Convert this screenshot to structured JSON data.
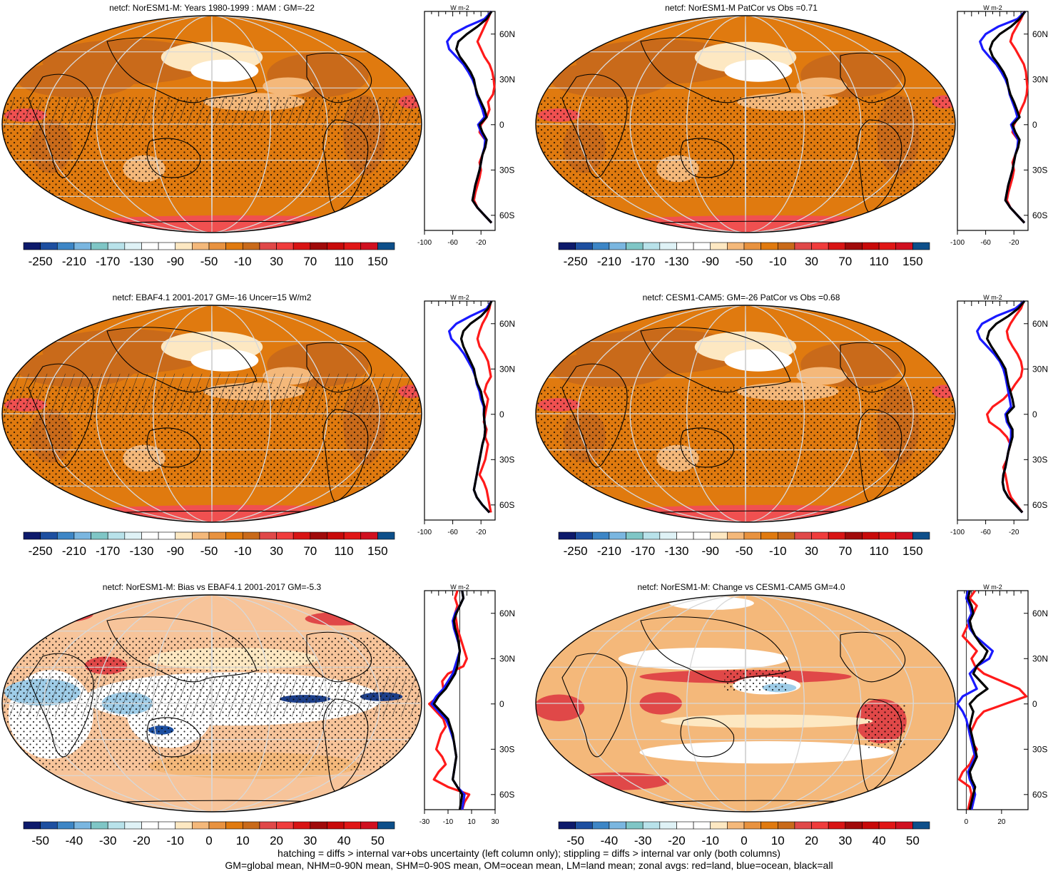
{
  "palette": {
    "full": [
      "#0d1a6b",
      "#1d4fa0",
      "#3d86c6",
      "#7ab6e0",
      "#7fc6c6",
      "#b8e2ea",
      "#dff2f6",
      "#ffffff",
      "#ffffff",
      "#fde8c2",
      "#f4b87a",
      "#e8923f",
      "#e07a0f",
      "#c96a1a",
      "#e04848",
      "#f03c3c",
      "#d81414",
      "#a00a0a",
      "#c80a0a",
      "#e01616",
      "#d01020",
      "#0d4f8a"
    ],
    "ocean": "#e07a0f",
    "dark": "#c96a1a",
    "light": "#f4b87a",
    "pale": "#fde8c2",
    "red": "#f05050",
    "blueline": "#1a1aff",
    "redline": "#ff1a1a",
    "blackline": "#000000"
  },
  "footer": {
    "line1": "hatching = diffs > internal var+obs uncertainty (left column only); stippling = diffs > internal var only (both columns)",
    "line2": "GM=global mean, NHM=0-90N mean, SHM=0-90S mean, OM=ocean mean, LM=land mean; zonal avgs: red=land, blue=ocean, black=all"
  },
  "chart_data": [
    {
      "type": "heatmap",
      "title": "netcf: NorESM1-M: Years 1980-1999 : MAM : GM=-22",
      "map_style": "mean",
      "colorbar_labels": [
        "-250",
        "-210",
        "-170",
        "-130",
        "-90",
        "-50",
        "-10",
        "30",
        "70",
        "110",
        "150"
      ],
      "zonal": {
        "unit": "W m-2",
        "xlim": [
          -100,
          0
        ],
        "xticks": [
          "-100",
          "-60",
          "-20"
        ],
        "lat_ticks": [
          "60N",
          "30N",
          "0",
          "30S",
          "60S"
        ],
        "lat": [
          75,
          70,
          65,
          60,
          55,
          50,
          45,
          40,
          35,
          30,
          25,
          20,
          15,
          10,
          5,
          0,
          -5,
          -10,
          -15,
          -20,
          -25,
          -30,
          -35,
          -40,
          -45,
          -50,
          -55,
          -60,
          -65
        ],
        "series": [
          {
            "name": "all",
            "color": "#000000",
            "values": [
              -5,
              -12,
              -25,
              -40,
              -52,
              -55,
              -50,
              -42,
              -35,
              -30,
              -28,
              -25,
              -20,
              -15,
              -12,
              -22,
              -18,
              -12,
              -14,
              -18,
              -20,
              -22,
              -25,
              -28,
              -30,
              -32,
              -25,
              -15,
              -5
            ]
          },
          {
            "name": "ocean",
            "color": "#1a1aff",
            "values": [
              -5,
              -15,
              -40,
              -60,
              -68,
              -65,
              -55,
              -45,
              -38,
              -32,
              -28,
              -26,
              -22,
              -18,
              -15,
              -24,
              -20,
              -14,
              -15,
              -18,
              -20,
              -22,
              -25,
              -28,
              -30,
              -32,
              -25,
              -15,
              -5
            ]
          },
          {
            "name": "land",
            "color": "#ff1a1a",
            "values": [
              -6,
              -10,
              -15,
              -20,
              -25,
              -20,
              -15,
              -8,
              -4,
              -2,
              -1,
              -3,
              -10,
              -8,
              -12,
              -20,
              -22,
              -14,
              -14,
              -18,
              -22,
              -20,
              -22,
              -25,
              -28,
              -30,
              -25,
              -15,
              -5
            ]
          }
        ]
      }
    },
    {
      "type": "heatmap",
      "title": "netcf: NorESM1-M PatCor vs Obs =0.71",
      "map_style": "mean",
      "colorbar_labels": [
        "-250",
        "-210",
        "-170",
        "-130",
        "-90",
        "-50",
        "-10",
        "30",
        "70",
        "110",
        "150"
      ],
      "zonal": {
        "unit": "W m-2",
        "xlim": [
          -100,
          0
        ],
        "xticks": [
          "-100",
          "-60",
          "-20"
        ],
        "lat_ticks": [
          "60N",
          "30N",
          "0",
          "30S",
          "60S"
        ],
        "lat": [
          75,
          70,
          65,
          60,
          55,
          50,
          45,
          40,
          35,
          30,
          25,
          20,
          15,
          10,
          5,
          0,
          -5,
          -10,
          -15,
          -20,
          -25,
          -30,
          -35,
          -40,
          -45,
          -50,
          -55,
          -60,
          -65
        ],
        "series": [
          {
            "name": "all",
            "color": "#000000",
            "values": [
              -4,
              -12,
              -24,
              -40,
              -50,
              -54,
              -50,
              -42,
              -35,
              -30,
              -28,
              -25,
              -20,
              -16,
              -12,
              -22,
              -18,
              -12,
              -14,
              -18,
              -20,
              -22,
              -25,
              -28,
              -30,
              -32,
              -25,
              -15,
              -5
            ]
          },
          {
            "name": "ocean",
            "color": "#1a1aff",
            "values": [
              -4,
              -15,
              -42,
              -60,
              -68,
              -64,
              -55,
              -45,
              -38,
              -32,
              -28,
              -26,
              -22,
              -18,
              -15,
              -24,
              -20,
              -14,
              -15,
              -18,
              -20,
              -22,
              -25,
              -28,
              -30,
              -32,
              -25,
              -15,
              -5
            ]
          },
          {
            "name": "land",
            "color": "#ff1a1a",
            "values": [
              -5,
              -10,
              -16,
              -22,
              -25,
              -18,
              -12,
              -6,
              -3,
              -2,
              -1,
              -2,
              -5,
              -10,
              -14,
              -20,
              -22,
              -14,
              -14,
              -18,
              -22,
              -20,
              -22,
              -25,
              -28,
              -30,
              -25,
              -15,
              -5
            ]
          }
        ]
      }
    },
    {
      "type": "heatmap",
      "title": "netcf: EBAF4.1 2001-2017 GM=-16 Uncer=15 W/m2",
      "map_style": "mean",
      "colorbar_labels": [
        "-250",
        "-210",
        "-170",
        "-130",
        "-90",
        "-50",
        "-10",
        "30",
        "70",
        "110",
        "150"
      ],
      "zonal": {
        "unit": "W m-2",
        "xlim": [
          -100,
          0
        ],
        "xticks": [
          "-100",
          "-60",
          "-20"
        ],
        "lat_ticks": [
          "60N",
          "30N",
          "0",
          "30S",
          "60S"
        ],
        "lat": [
          75,
          70,
          65,
          60,
          55,
          50,
          45,
          40,
          35,
          30,
          25,
          20,
          15,
          10,
          5,
          0,
          -5,
          -10,
          -15,
          -20,
          -25,
          -30,
          -35,
          -40,
          -45,
          -50,
          -55,
          -60,
          -65
        ],
        "series": [
          {
            "name": "all",
            "color": "#000000",
            "values": [
              -5,
              -10,
              -20,
              -35,
              -45,
              -48,
              -45,
              -40,
              -35,
              -30,
              -28,
              -25,
              -20,
              -18,
              -15,
              -16,
              -15,
              -14,
              -15,
              -18,
              -20,
              -22,
              -24,
              -26,
              -28,
              -30,
              -26,
              -18,
              -8
            ]
          },
          {
            "name": "ocean",
            "color": "#1a1aff",
            "values": [
              -5,
              -12,
              -35,
              -55,
              -65,
              -62,
              -52,
              -44,
              -38,
              -32,
              -28,
              -26,
              -22,
              -20,
              -16,
              -16,
              -15,
              -14,
              -15,
              -18,
              -20,
              -22,
              -24,
              -26,
              -28,
              -30,
              -26,
              -18,
              -8
            ]
          },
          {
            "name": "land",
            "color": "#ff1a1a",
            "values": [
              -6,
              -8,
              -12,
              -18,
              -22,
              -25,
              -22,
              -15,
              -10,
              -8,
              -6,
              -12,
              -15,
              -10,
              -12,
              -14,
              -16,
              -12,
              -14,
              -10,
              -12,
              -14,
              -18,
              -22,
              -16,
              -12,
              -10,
              -8,
              -6
            ]
          }
        ]
      }
    },
    {
      "type": "heatmap",
      "title": "netcf: CESM1-CAM5: GM=-26 PatCor vs Obs =0.68",
      "map_style": "mean",
      "colorbar_labels": [
        "-250",
        "-210",
        "-170",
        "-130",
        "-90",
        "-50",
        "-10",
        "30",
        "70",
        "110",
        "150"
      ],
      "zonal": {
        "unit": "W m-2",
        "xlim": [
          -100,
          0
        ],
        "xticks": [
          "-100",
          "-60",
          "-20"
        ],
        "lat_ticks": [
          "60N",
          "30N",
          "0",
          "30S",
          "60S"
        ],
        "lat": [
          75,
          70,
          65,
          60,
          55,
          50,
          45,
          40,
          35,
          30,
          25,
          20,
          15,
          10,
          5,
          0,
          -5,
          -10,
          -15,
          -20,
          -25,
          -30,
          -35,
          -40,
          -45,
          -50,
          -55,
          -60,
          -65
        ],
        "series": [
          {
            "name": "all",
            "color": "#000000",
            "values": [
              -5,
              -14,
              -28,
              -45,
              -55,
              -58,
              -52,
              -45,
              -38,
              -32,
              -30,
              -28,
              -25,
              -22,
              -20,
              -30,
              -28,
              -22,
              -22,
              -25,
              -28,
              -30,
              -32,
              -35,
              -36,
              -34,
              -28,
              -18,
              -8
            ]
          },
          {
            "name": "ocean",
            "color": "#1a1aff",
            "values": [
              -5,
              -18,
              -45,
              -65,
              -72,
              -68,
              -58,
              -48,
              -40,
              -35,
              -32,
              -30,
              -28,
              -26,
              -24,
              -32,
              -30,
              -24,
              -24,
              -26,
              -28,
              -30,
              -32,
              -35,
              -36,
              -34,
              -28,
              -18,
              -8
            ]
          },
          {
            "name": "land",
            "color": "#ff1a1a",
            "values": [
              -6,
              -10,
              -18,
              -25,
              -30,
              -28,
              -22,
              -15,
              -10,
              -8,
              -10,
              -18,
              -25,
              -35,
              -50,
              -58,
              -55,
              -40,
              -30,
              -25,
              -28,
              -30,
              -35,
              -32,
              -30,
              -28,
              -24,
              -16,
              -8
            ]
          }
        ]
      }
    },
    {
      "type": "heatmap",
      "title": "netcf: NorESM1-M: Bias vs EBAF4.1 2001-2017 GM=-5.3",
      "map_style": "bias",
      "colorbar_labels": [
        "-50",
        "-40",
        "-30",
        "-20",
        "-10",
        "0",
        "10",
        "20",
        "30",
        "40",
        "50"
      ],
      "zonal": {
        "unit": "W m-2",
        "xlim": [
          -30,
          30
        ],
        "xticks": [
          "-30",
          "-10",
          "10",
          "30"
        ],
        "lat_ticks": [
          "60N",
          "30N",
          "0",
          "30S",
          "60S"
        ],
        "lat": [
          75,
          70,
          65,
          60,
          55,
          50,
          45,
          40,
          35,
          30,
          25,
          20,
          15,
          10,
          5,
          0,
          -5,
          -10,
          -15,
          -20,
          -25,
          -30,
          -35,
          -40,
          -45,
          -50,
          -55,
          -60,
          -65,
          -70
        ],
        "series": [
          {
            "name": "all",
            "color": "#000000",
            "values": [
              2,
              3,
              0,
              -3,
              -5,
              -4,
              -2,
              -1,
              0,
              -1,
              -2,
              -4,
              -8,
              -12,
              -18,
              -22,
              -16,
              -10,
              -8,
              -6,
              -5,
              -4,
              -3,
              -4,
              -5,
              -6,
              -2,
              2,
              1,
              0
            ]
          },
          {
            "name": "ocean",
            "color": "#1a1aff",
            "values": [
              2,
              3,
              0,
              -4,
              -6,
              -5,
              -3,
              -1,
              0,
              -2,
              -4,
              -6,
              -10,
              -14,
              -20,
              -24,
              -18,
              -12,
              -9,
              -7,
              -5,
              -4,
              -3,
              -4,
              -5,
              -6,
              -2,
              4,
              3,
              2
            ]
          },
          {
            "name": "land",
            "color": "#ff1a1a",
            "values": [
              -2,
              -4,
              -2,
              -4,
              -3,
              -2,
              0,
              2,
              4,
              6,
              3,
              -10,
              -15,
              -14,
              -18,
              -26,
              -20,
              -14,
              -12,
              -16,
              -18,
              -20,
              -15,
              -12,
              -18,
              -22,
              -10,
              8,
              4,
              2
            ]
          }
        ]
      }
    },
    {
      "type": "heatmap",
      "title": "netcf: NorESM1-M: Change vs CESM1-CAM5 GM=4.0",
      "map_style": "change",
      "colorbar_labels": [
        "-50",
        "-40",
        "-30",
        "-20",
        "-10",
        "0",
        "10",
        "20",
        "30",
        "40",
        "50"
      ],
      "zonal": {
        "unit": "W m-2",
        "xlim": [
          -5,
          35
        ],
        "xticks": [
          "0",
          "20"
        ],
        "lat_ticks": [
          "60N",
          "30N",
          "0",
          "30S",
          "60S"
        ],
        "lat": [
          75,
          70,
          65,
          60,
          55,
          50,
          45,
          40,
          35,
          30,
          25,
          20,
          15,
          10,
          5,
          0,
          -5,
          -10,
          -15,
          -20,
          -25,
          -30,
          -35,
          -40,
          -45,
          -50,
          -55,
          -60,
          -65,
          -70
        ],
        "series": [
          {
            "name": "all",
            "color": "#000000",
            "values": [
              2,
              1,
              3,
              4,
              2,
              3,
              5,
              8,
              12,
              10,
              6,
              4,
              8,
              12,
              6,
              2,
              4,
              3,
              2,
              3,
              4,
              5,
              6,
              4,
              2,
              3,
              5,
              4,
              3,
              2
            ]
          },
          {
            "name": "ocean",
            "color": "#1a1aff",
            "values": [
              1,
              0,
              2,
              3,
              1,
              2,
              5,
              10,
              15,
              13,
              6,
              2,
              4,
              6,
              -2,
              -5,
              -2,
              0,
              1,
              2,
              3,
              4,
              5,
              3,
              1,
              2,
              4,
              5,
              4,
              3
            ]
          },
          {
            "name": "land",
            "color": "#ff1a1a",
            "values": [
              5,
              2,
              6,
              4,
              2,
              0,
              -2,
              2,
              6,
              3,
              5,
              10,
              20,
              30,
              34,
              22,
              10,
              6,
              4,
              2,
              3,
              6,
              4,
              2,
              -2,
              -4,
              2,
              3,
              2,
              1
            ]
          }
        ]
      }
    }
  ]
}
